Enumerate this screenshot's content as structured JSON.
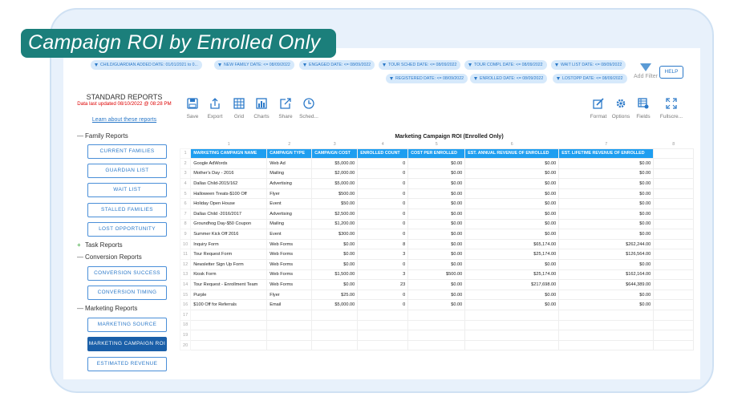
{
  "banner_title": "Campaign ROI by Enrolled Only",
  "filters": [
    "CHILD/GUARDIAN ADDED DATE: 01/01/2021 to 0...",
    "NEW FAMILY DATE: <= 08/09/2022",
    "ENGAGED DATE: <= 08/09/2022",
    "TOUR SCHED DATE: <= 08/09/2022",
    "TOUR COMPL DATE: <= 08/09/2022",
    "WAIT LIST DATE: <= 08/09/2022",
    "REGISTERED DATE: <= 08/09/2022",
    "ENROLLED DATE: <= 08/09/2022",
    "LOSTOPP DATE: <= 08/09/2022"
  ],
  "add_filter": "Add Filter",
  "help": "HELP",
  "sidebar": {
    "title": "STANDARD REPORTS",
    "updated": "Data last updated 08/10/2022 @ 08:28 PM",
    "learn_link": "Learn about these reports",
    "sections": {
      "family": {
        "marker": "—",
        "label": "Family Reports"
      },
      "task": {
        "marker": "+",
        "label": "Task Reports"
      },
      "conversion": {
        "marker": "—",
        "label": "Conversion Reports"
      },
      "marketing": {
        "marker": "—",
        "label": "Marketing Reports"
      }
    },
    "buttons": [
      "CURRENT FAMILIES",
      "GUARDIAN LIST",
      "WAIT LIST",
      "STALLED FAMILIES",
      "LOST OPPORTUNITY",
      "CONVERSION SUCCESS",
      "CONVERSION TIMING",
      "MARKETING SOURCE",
      "MARKETING CAMPAIGN ROI",
      "ESTIMATED REVENUE"
    ],
    "active_button": "MARKETING CAMPAIGN ROI"
  },
  "toolbar": {
    "left": [
      "Save",
      "Export",
      "Grid",
      "Charts",
      "Share",
      "Sched..."
    ],
    "right": [
      "Format",
      "Options",
      "Fields",
      "Fullscre..."
    ]
  },
  "grid": {
    "title": "Marketing Campaign ROI (Enrolled Only)",
    "col_numbers": [
      "1",
      "2",
      "3",
      "4",
      "5",
      "6",
      "7",
      "8"
    ],
    "headers": [
      "MARKETING CAMPAIGN NAME",
      "CAMPAIGN TYPE",
      "CAMPAIGN COST",
      "ENROLLED COUNT",
      "COST PER ENROLLED",
      "EST. ANNUAL REVENUE OF ENROLLED",
      "EST. LIFETIME REVENUE OF ENROLLED"
    ],
    "rows": [
      [
        "Google AdWords",
        "Web Ad",
        "$5,000.00",
        "0",
        "$0.00",
        "$0.00",
        "$0.00"
      ],
      [
        "Mother's Day - 2016",
        "Mailing",
        "$2,000.00",
        "0",
        "$0.00",
        "$0.00",
        "$0.00"
      ],
      [
        "Dallas Child-2015/162",
        "Advertising",
        "$5,000.00",
        "0",
        "$0.00",
        "$0.00",
        "$0.00"
      ],
      [
        "Halloween Treats-$100 Off",
        "Flyer",
        "$500.00",
        "0",
        "$0.00",
        "$0.00",
        "$0.00"
      ],
      [
        "Holiday Open House",
        "Event",
        "$50.00",
        "0",
        "$0.00",
        "$0.00",
        "$0.00"
      ],
      [
        "Dallas Child -2016/2017",
        "Advertising",
        "$2,500.00",
        "0",
        "$0.00",
        "$0.00",
        "$0.00"
      ],
      [
        "Groundhog Day-$50 Coupon",
        "Mailing",
        "$1,200.00",
        "0",
        "$0.00",
        "$0.00",
        "$0.00"
      ],
      [
        "Summer Kick Off 2016",
        "Event",
        "$300.00",
        "0",
        "$0.00",
        "$0.00",
        "$0.00"
      ],
      [
        "Inquiry Form",
        "Web Forms",
        "$0.00",
        "8",
        "$0.00",
        "$65,174.00",
        "$262,244.00"
      ],
      [
        "Tour Request Form",
        "Web Forms",
        "$0.00",
        "3",
        "$0.00",
        "$25,174.00",
        "$126,564.00"
      ],
      [
        "Newsletter Sign Up Form",
        "Web Forms",
        "$0.00",
        "0",
        "$0.00",
        "$0.00",
        "$0.00"
      ],
      [
        "Kiosk Form",
        "Web Forms",
        "$1,500.00",
        "3",
        "$500.00",
        "$25,174.00",
        "$162,164.00"
      ],
      [
        "Tour Request - Enrollment Team",
        "Web Forms",
        "$0.00",
        "23",
        "$0.00",
        "$217,698.00",
        "$644,389.00"
      ],
      [
        "Purple",
        "Flyer",
        "$25.00",
        "0",
        "$0.00",
        "$0.00",
        "$0.00"
      ],
      [
        "$100 Off for Referrals",
        "Email",
        "$5,000.00",
        "0",
        "$0.00",
        "$0.00",
        "$0.00"
      ],
      [
        "",
        "",
        "",
        "",
        "",
        "",
        ""
      ],
      [
        "",
        "",
        "",
        "",
        "",
        "",
        ""
      ],
      [
        "",
        "",
        "",
        "",
        "",
        "",
        ""
      ],
      [
        "",
        "",
        "",
        "",
        "",
        "",
        ""
      ]
    ],
    "row_numbers": [
      "1",
      "2",
      "3",
      "4",
      "5",
      "6",
      "7",
      "8",
      "9",
      "10",
      "11",
      "12",
      "13",
      "14",
      "15",
      "16",
      "17",
      "18",
      "19",
      "20"
    ]
  }
}
